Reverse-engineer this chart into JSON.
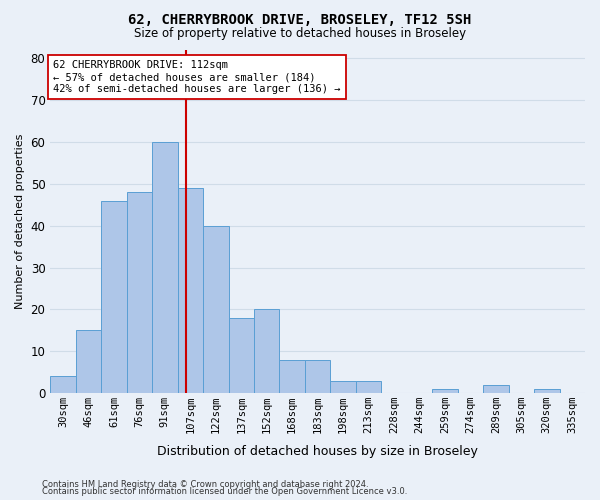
{
  "title_line1": "62, CHERRYBROOK DRIVE, BROSELEY, TF12 5SH",
  "title_line2": "Size of property relative to detached houses in Broseley",
  "xlabel": "Distribution of detached houses by size in Broseley",
  "ylabel": "Number of detached properties",
  "bar_labels": [
    "30sqm",
    "46sqm",
    "61sqm",
    "76sqm",
    "91sqm",
    "107sqm",
    "122sqm",
    "137sqm",
    "152sqm",
    "168sqm",
    "183sqm",
    "198sqm",
    "213sqm",
    "228sqm",
    "244sqm",
    "259sqm",
    "274sqm",
    "289sqm",
    "305sqm",
    "320sqm",
    "335sqm"
  ],
  "bar_values": [
    4,
    15,
    46,
    48,
    60,
    49,
    40,
    18,
    20,
    8,
    8,
    3,
    3,
    0,
    0,
    1,
    0,
    2,
    0,
    1,
    0
  ],
  "bar_color": "#aec6e8",
  "bar_edge_color": "#5a9fd4",
  "marker_color": "#cc0000",
  "annotation_line1": "62 CHERRYBROOK DRIVE: 112sqm",
  "annotation_line2": "← 57% of detached houses are smaller (184)",
  "annotation_line3": "42% of semi-detached houses are larger (136) →",
  "annotation_box_color": "#ffffff",
  "annotation_box_edge": "#cc0000",
  "ylim": [
    0,
    82
  ],
  "yticks": [
    0,
    10,
    20,
    30,
    40,
    50,
    60,
    70,
    80
  ],
  "grid_color": "#d0dce8",
  "bg_color": "#eaf0f8",
  "footer1": "Contains HM Land Registry data © Crown copyright and database right 2024.",
  "footer2": "Contains public sector information licensed under the Open Government Licence v3.0."
}
